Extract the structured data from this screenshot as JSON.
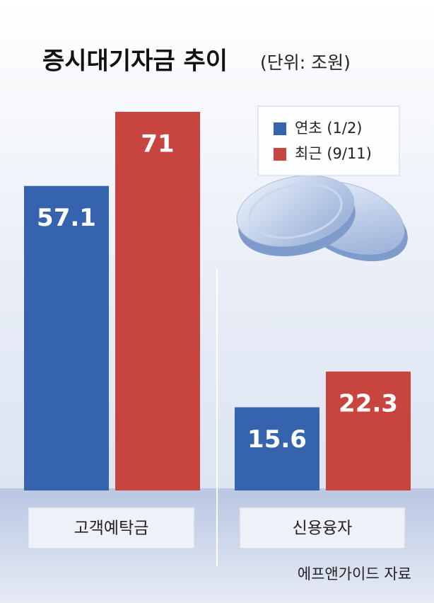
{
  "chart_data": {
    "type": "bar",
    "title": "증시대기자금 추이",
    "subtitle": "(단위: 조원)",
    "categories": [
      "고객예탁금",
      "신용융자"
    ],
    "series": [
      {
        "name": "연초 (1/2)",
        "color": "#3563ad",
        "values": [
          57.1,
          15.6
        ]
      },
      {
        "name": "최근 (9/11)",
        "color": "#c8443f",
        "values": [
          71,
          22.3
        ]
      }
    ],
    "source": "에프앤가이드 자료"
  }
}
